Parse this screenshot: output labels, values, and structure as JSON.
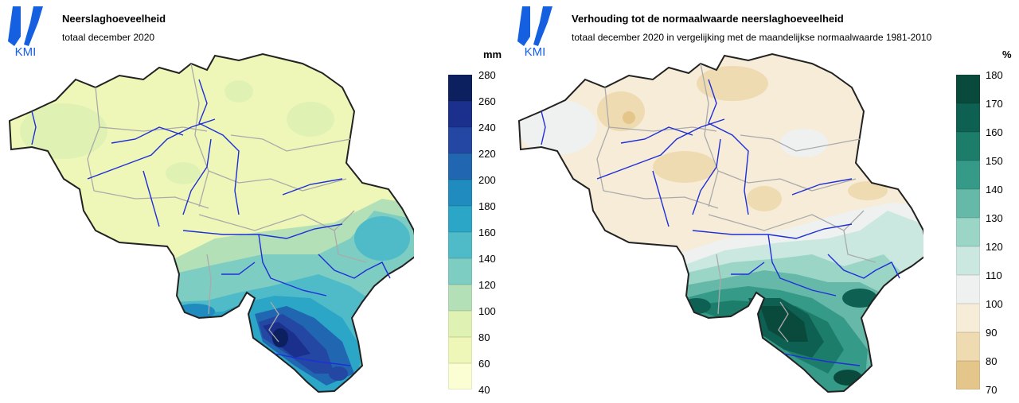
{
  "logo": {
    "text": "KMI",
    "icon": "kmi-logo-icon",
    "color": "#1460e0"
  },
  "left": {
    "title": "Neerslaghoeveelheid",
    "subtitle": "totaal december 2020",
    "unit": "mm",
    "ticks": [
      "280",
      "260",
      "240",
      "220",
      "200",
      "180",
      "160",
      "140",
      "120",
      "100",
      "80",
      "60",
      "40"
    ],
    "colors": [
      "#0c1f5e",
      "#1b2f8c",
      "#2447a3",
      "#2066b0",
      "#1f8bbe",
      "#2ba6c7",
      "#4fbbc9",
      "#7ecdc2",
      "#b3e0b6",
      "#dff2b4",
      "#eef7b8",
      "#fbfdd2"
    ]
  },
  "right": {
    "title": "Verhouding tot de normaalwaarde neerslaghoeveelheid",
    "subtitle": "totaal december 2020 in vergelijking met de maandelijkse normaalwaarde 1981-2010",
    "unit": "%",
    "ticks": [
      "180",
      "170",
      "160",
      "150",
      "140",
      "130",
      "120",
      "110",
      "100",
      "90",
      "80",
      "70"
    ],
    "colors": [
      "#0a4a3c",
      "#0e6152",
      "#1c7d6b",
      "#369a88",
      "#66b9a8",
      "#9ad5c6",
      "#cbe8e0",
      "#eef1ef",
      "#f6ecd8",
      "#efdbb2",
      "#e4c58a"
    ]
  }
}
